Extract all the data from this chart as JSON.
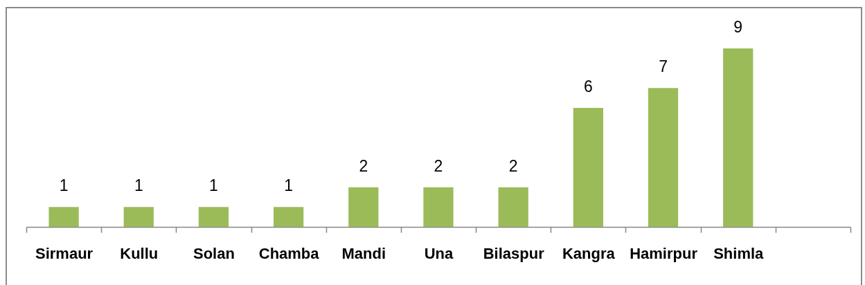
{
  "chart_data": {
    "type": "bar",
    "categories": [
      "Sirmaur",
      "Kullu",
      "Solan",
      "Chamba",
      "Mandi",
      "Una",
      "Bilaspur",
      "Kangra",
      "Hamirpur",
      "Shimla",
      null
    ],
    "values": [
      1,
      1,
      1,
      1,
      2,
      2,
      2,
      6,
      7,
      9,
      null
    ],
    "color": "#9bbb59",
    "data_labels": true
  }
}
